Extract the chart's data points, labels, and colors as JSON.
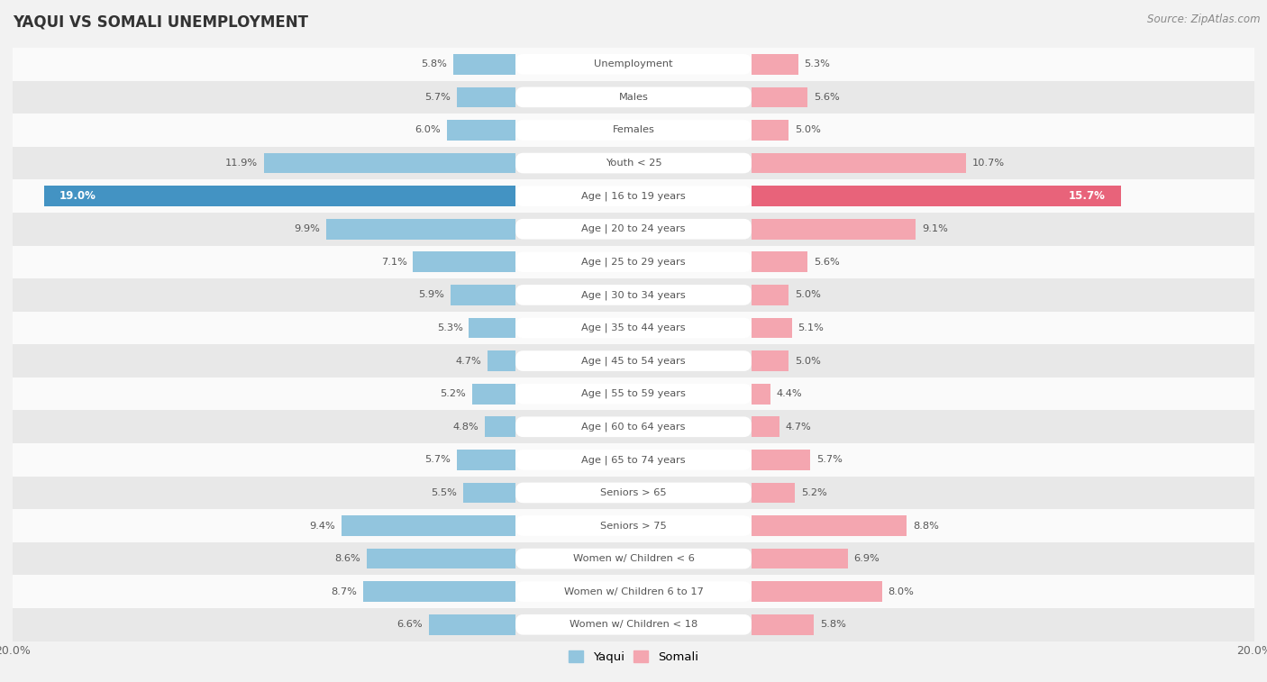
{
  "title": "YAQUI VS SOMALI UNEMPLOYMENT",
  "source": "Source: ZipAtlas.com",
  "categories": [
    "Unemployment",
    "Males",
    "Females",
    "Youth < 25",
    "Age | 16 to 19 years",
    "Age | 20 to 24 years",
    "Age | 25 to 29 years",
    "Age | 30 to 34 years",
    "Age | 35 to 44 years",
    "Age | 45 to 54 years",
    "Age | 55 to 59 years",
    "Age | 60 to 64 years",
    "Age | 65 to 74 years",
    "Seniors > 65",
    "Seniors > 75",
    "Women w/ Children < 6",
    "Women w/ Children 6 to 17",
    "Women w/ Children < 18"
  ],
  "yaqui": [
    5.8,
    5.7,
    6.0,
    11.9,
    19.0,
    9.9,
    7.1,
    5.9,
    5.3,
    4.7,
    5.2,
    4.8,
    5.7,
    5.5,
    9.4,
    8.6,
    8.7,
    6.6
  ],
  "somali": [
    5.3,
    5.6,
    5.0,
    10.7,
    15.7,
    9.1,
    5.6,
    5.0,
    5.1,
    5.0,
    4.4,
    4.7,
    5.7,
    5.2,
    8.8,
    6.9,
    8.0,
    5.8
  ],
  "yaqui_color": "#92c5de",
  "somali_color": "#f4a6b0",
  "highlight_yaqui_color": "#4393c3",
  "highlight_somali_color": "#e8637a",
  "bg_color": "#f2f2f2",
  "row_bg_light": "#fafafa",
  "row_bg_dark": "#e8e8e8",
  "max_val": 20.0,
  "legend_yaqui": "Yaqui",
  "legend_somali": "Somali",
  "bar_height": 0.62,
  "label_box_color": "#ffffff",
  "label_text_color": "#555555",
  "value_text_color": "#555555",
  "highlight_value_text_color": "#ffffff"
}
